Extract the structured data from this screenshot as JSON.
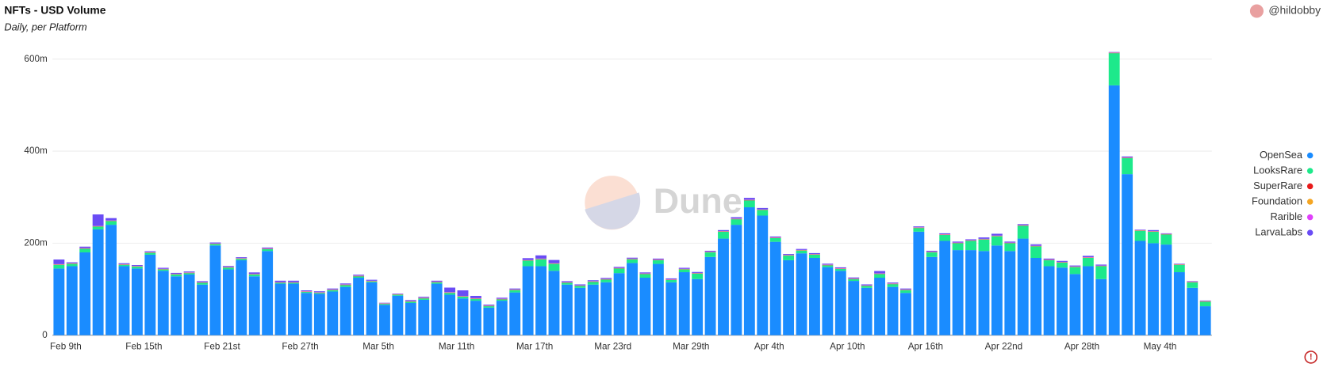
{
  "chart_data": {
    "type": "stacked-bar",
    "title": "NFTs - USD Volume",
    "subtitle": "Daily, per Platform",
    "author": "@hildobby",
    "watermark": "Dune",
    "categories": [
      "Feb 9th",
      null,
      null,
      null,
      null,
      null,
      "Feb 15th",
      null,
      null,
      null,
      null,
      null,
      "Feb 21st",
      null,
      null,
      null,
      null,
      null,
      "Feb 27th",
      null,
      null,
      null,
      null,
      null,
      "Mar 5th",
      null,
      null,
      null,
      null,
      null,
      "Mar 11th",
      null,
      null,
      null,
      null,
      null,
      "Mar 17th",
      null,
      null,
      null,
      null,
      null,
      "Mar 23rd",
      null,
      null,
      null,
      null,
      null,
      "Mar 29th",
      null,
      null,
      null,
      null,
      null,
      "Apr 4th",
      null,
      null,
      null,
      null,
      null,
      "Apr 10th",
      null,
      null,
      null,
      null,
      null,
      "Apr 16th",
      null,
      null,
      null,
      null,
      null,
      "Apr 22nd",
      null,
      null,
      null,
      null,
      null,
      "Apr 28th",
      null,
      null,
      null,
      null,
      null,
      "May 4th",
      null,
      null,
      null,
      null
    ],
    "ylim": [
      0,
      620
    ],
    "yticks": [
      0,
      {
        "value": 200,
        "label": "200m"
      },
      {
        "value": 400,
        "label": "400m"
      },
      {
        "value": 600,
        "label": "600m"
      }
    ],
    "grid": true,
    "legend": "right",
    "series": [
      {
        "name": "OpenSea",
        "color": "#1a8cff",
        "values": [
          145,
          150,
          180,
          230,
          240,
          150,
          145,
          175,
          140,
          128,
          132,
          110,
          195,
          143,
          163,
          128,
          183,
          112,
          112,
          92,
          90,
          95,
          105,
          125,
          115,
          66,
          86,
          70,
          77,
          112,
          88,
          80,
          75,
          60,
          75,
          93,
          150,
          150,
          140,
          110,
          103,
          110,
          115,
          135,
          157,
          125,
          155,
          115,
          137,
          122,
          170,
          210,
          240,
          278,
          260,
          203,
          163,
          178,
          168,
          148,
          140,
          118,
          103,
          125,
          105,
          92,
          225,
          170,
          205,
          185,
          185,
          183,
          195,
          183,
          210,
          168,
          150,
          147,
          133,
          150,
          122,
          543,
          350,
          205,
          200,
          197,
          137,
          103,
          63
        ]
      },
      {
        "name": "LooksRare",
        "color": "#1de98b",
        "values": [
          8,
          5,
          8,
          6,
          8,
          3,
          4,
          4,
          3,
          4,
          3,
          4,
          3,
          4,
          3,
          4,
          4,
          2,
          2,
          2,
          2,
          3,
          4,
          3,
          2,
          2,
          2,
          3,
          3,
          3,
          4,
          4,
          4,
          3,
          3,
          5,
          12,
          15,
          15,
          4,
          4,
          6,
          6,
          10,
          8,
          8,
          8,
          5,
          6,
          12,
          10,
          15,
          12,
          15,
          12,
          8,
          10,
          6,
          7,
          4,
          4,
          4,
          4,
          8,
          6,
          6,
          8,
          10,
          13,
          15,
          20,
          25,
          20,
          17,
          28,
          25,
          13,
          11,
          15,
          18,
          28,
          70,
          35,
          22,
          25,
          22,
          16,
          12,
          10
        ]
      },
      {
        "name": "SuperRare",
        "color": "#e81a1a",
        "values": [
          0.5,
          0.5,
          0.5,
          0.5,
          0.5,
          0.5,
          0.5,
          0.5,
          0.5,
          0.5,
          0.5,
          0.5,
          0.5,
          0.5,
          0.5,
          0.5,
          0.5,
          0.5,
          0.5,
          0.5,
          0.5,
          0.5,
          0.5,
          0.5,
          0.5,
          0.5,
          0.5,
          0.5,
          0.5,
          0.5,
          0.5,
          0.5,
          0.5,
          0.5,
          0.5,
          0.5,
          0.5,
          0.5,
          0.5,
          0.5,
          0.5,
          0.5,
          0.5,
          0.5,
          0.5,
          0.5,
          0.5,
          0.5,
          0.5,
          0.5,
          0.5,
          0.5,
          0.5,
          0.5,
          0.5,
          0.5,
          0.5,
          0.5,
          0.5,
          0.5,
          0.5,
          0.5,
          0.5,
          0.5,
          0.5,
          0.5,
          0.5,
          0.5,
          0.5,
          0.5,
          0.5,
          0.5,
          0.5,
          0.5,
          0.5,
          0.5,
          0.5,
          0.5,
          0.5,
          0.5,
          0.5,
          0.5,
          0.5,
          0.5,
          0.5,
          0.5,
          0.5,
          0.5,
          0.5
        ]
      },
      {
        "name": "Foundation",
        "color": "#f5a623",
        "values": [
          0.5,
          0.5,
          0.5,
          0.5,
          0.5,
          0.5,
          0.5,
          0.5,
          0.5,
          0.5,
          0.5,
          0.5,
          0.5,
          0.5,
          0.5,
          0.5,
          0.5,
          0.5,
          0.5,
          0.5,
          0.5,
          0.5,
          0.5,
          0.5,
          0.5,
          0.5,
          0.5,
          0.5,
          0.5,
          0.5,
          0.5,
          0.5,
          0.5,
          0.5,
          0.5,
          0.5,
          0.5,
          0.5,
          0.5,
          0.5,
          0.5,
          0.5,
          0.5,
          0.5,
          0.5,
          0.5,
          0.5,
          0.5,
          0.5,
          0.5,
          0.5,
          0.5,
          0.5,
          0.5,
          0.5,
          0.5,
          0.5,
          0.5,
          0.5,
          0.5,
          0.5,
          0.5,
          0.5,
          0.5,
          0.5,
          0.5,
          0.5,
          0.5,
          0.5,
          0.5,
          0.5,
          0.5,
          0.5,
          0.5,
          0.5,
          0.5,
          0.5,
          0.5,
          0.5,
          0.5,
          0.5,
          0.5,
          0.5,
          0.5,
          0.5,
          0.5,
          0.5,
          0.5,
          0.5
        ]
      },
      {
        "name": "Rarible",
        "color": "#e040fb",
        "values": [
          0.5,
          0.5,
          0.5,
          0.5,
          0.5,
          0.5,
          0.5,
          0.5,
          0.5,
          0.5,
          0.5,
          0.5,
          0.5,
          0.5,
          0.5,
          0.5,
          0.5,
          0.5,
          0.5,
          0.5,
          0.5,
          0.5,
          0.5,
          0.5,
          0.5,
          0.5,
          0.5,
          0.5,
          0.5,
          0.5,
          0.5,
          0.5,
          0.5,
          0.5,
          0.5,
          0.5,
          0.5,
          0.5,
          0.5,
          0.5,
          0.5,
          0.5,
          0.5,
          0.5,
          0.5,
          0.5,
          0.5,
          0.5,
          0.5,
          0.5,
          0.5,
          0.5,
          0.5,
          0.5,
          0.5,
          0.5,
          0.5,
          0.5,
          0.5,
          0.5,
          0.5,
          0.5,
          0.5,
          0.5,
          0.5,
          0.5,
          0.5,
          0.5,
          0.5,
          0.5,
          0.5,
          0.5,
          0.5,
          0.5,
          0.5,
          0.5,
          0.5,
          0.5,
          0.5,
          0.5,
          0.5,
          0.5,
          0.5,
          0.5,
          0.5,
          0.5,
          0.5,
          0.5,
          0.5
        ]
      },
      {
        "name": "LarvaLabs",
        "color": "#6a4cf5",
        "values": [
          10,
          2,
          3,
          25,
          5,
          2,
          2,
          2,
          2,
          2,
          2,
          2,
          2,
          2,
          2,
          3,
          2,
          3,
          3,
          2,
          2,
          2,
          2,
          2,
          2,
          1,
          1,
          2,
          2,
          2,
          10,
          12,
          5,
          2,
          2,
          2,
          4,
          7,
          7,
          2,
          2,
          2,
          2,
          2,
          2,
          2,
          2,
          2,
          2,
          2,
          2,
          2,
          3,
          4,
          3,
          2,
          2,
          2,
          2,
          2,
          2,
          2,
          2,
          5,
          2,
          2,
          2,
          2,
          2,
          2,
          2,
          3,
          4,
          2,
          2,
          3,
          2,
          2,
          2,
          3,
          2,
          1,
          2,
          1,
          2,
          1,
          1,
          1,
          1
        ]
      }
    ]
  }
}
